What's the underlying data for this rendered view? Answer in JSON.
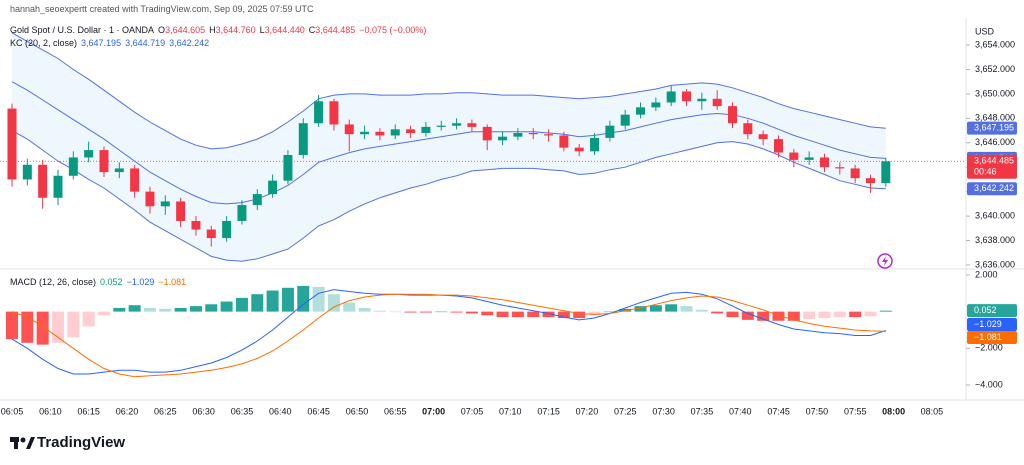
{
  "header": "hannah_seoexpertt created with TradingView.com, Sep 09, 2025 07:59 UTC",
  "footer": "TradingView",
  "chart_data": [
    {
      "type": "candlestick",
      "symbol": "Gold Spot / U.S. Dollar · 1 · OANDA",
      "ohlc_legend": [
        {
          "key": "O",
          "label": "3,644.605"
        },
        {
          "key": "H",
          "label": "3,644.760"
        },
        {
          "key": "L",
          "label": "3,644.440"
        },
        {
          "key": "C",
          "label": "3,644.485"
        }
      ],
      "change": "−0.075 (−0.00%)",
      "currency": "USD",
      "time_labels": [
        "06:05",
        "06:10",
        "06:15",
        "06:20",
        "06:25",
        "06:30",
        "06:35",
        "06:40",
        "06:45",
        "06:50",
        "06:55",
        "07:00",
        "07:05",
        "07:10",
        "07:15",
        "07:20",
        "07:25",
        "07:30",
        "07:35",
        "07:40",
        "07:45",
        "07:50",
        "07:55",
        "08:00",
        "08:05"
      ],
      "bold_time_labels": [
        11,
        23
      ],
      "up_color": "#089981",
      "down_color": "#f23645",
      "open": [
        3648.8,
        3643.0,
        3644.2,
        3641.5,
        3643.3,
        3644.8,
        3645.4,
        3643.6,
        3643.9,
        3642.0,
        3640.8,
        3641.2,
        3639.6,
        3638.9,
        3638.2,
        3639.6,
        3640.9,
        3641.8,
        3642.9,
        3645.0,
        3647.6,
        3649.4,
        3647.5,
        3646.7,
        3646.9,
        3646.6,
        3647.1,
        3646.8,
        3647.3,
        3647.4,
        3647.6,
        3647.3,
        3646.2,
        3646.5,
        3646.8,
        3646.7,
        3646.6,
        3645.6,
        3645.3,
        3646.4,
        3647.4,
        3648.3,
        3648.9,
        3649.3,
        3650.2,
        3649.4,
        3649.6,
        3649.0,
        3647.6,
        3646.7,
        3646.3,
        3645.2,
        3644.6,
        3644.8,
        3644.0,
        3643.9,
        3643.1,
        3642.7
      ],
      "high": [
        3649.2,
        3644.7,
        3644.6,
        3643.8,
        3645.3,
        3646.1,
        3645.7,
        3644.4,
        3644.2,
        3642.4,
        3641.7,
        3641.5,
        3640.0,
        3639.2,
        3640.0,
        3641.3,
        3642.2,
        3643.4,
        3645.4,
        3648.0,
        3649.9,
        3649.6,
        3647.9,
        3647.4,
        3647.2,
        3647.5,
        3647.4,
        3647.7,
        3647.8,
        3648.0,
        3647.9,
        3647.5,
        3646.9,
        3647.2,
        3647.2,
        3647.1,
        3646.9,
        3645.9,
        3646.8,
        3647.8,
        3648.7,
        3649.3,
        3649.7,
        3650.7,
        3650.4,
        3650.1,
        3650.3,
        3649.3,
        3647.9,
        3647.0,
        3646.6,
        3645.5,
        3645.3,
        3645.1,
        3644.4,
        3644.2,
        3643.4,
        3644.76
      ],
      "low": [
        3642.4,
        3642.5,
        3640.6,
        3640.9,
        3643.0,
        3644.4,
        3643.2,
        3643.1,
        3641.5,
        3640.2,
        3640.1,
        3639.1,
        3638.4,
        3637.5,
        3637.9,
        3639.3,
        3640.5,
        3641.5,
        3642.6,
        3644.7,
        3647.3,
        3647.0,
        3645.3,
        3646.3,
        3646.2,
        3646.3,
        3646.4,
        3646.5,
        3647.0,
        3647.1,
        3646.9,
        3645.4,
        3645.8,
        3646.2,
        3646.3,
        3646.1,
        3645.3,
        3644.9,
        3645.0,
        3646.1,
        3647.1,
        3648.0,
        3648.6,
        3649.0,
        3649.0,
        3648.7,
        3648.7,
        3647.2,
        3646.3,
        3645.8,
        3644.8,
        3644.0,
        3644.2,
        3643.6,
        3643.4,
        3642.7,
        3641.9,
        3642.4
      ],
      "close": [
        3643.0,
        3644.2,
        3641.5,
        3643.3,
        3644.8,
        3645.4,
        3643.6,
        3643.9,
        3642.0,
        3640.8,
        3641.2,
        3639.6,
        3638.9,
        3638.2,
        3639.6,
        3640.9,
        3641.8,
        3642.9,
        3645.0,
        3647.6,
        3649.4,
        3647.5,
        3646.7,
        3646.9,
        3646.6,
        3647.1,
        3646.8,
        3647.3,
        3647.4,
        3647.6,
        3647.3,
        3646.2,
        3646.5,
        3646.8,
        3646.7,
        3646.6,
        3645.6,
        3645.3,
        3646.4,
        3647.4,
        3648.3,
        3648.9,
        3649.3,
        3650.2,
        3649.4,
        3649.6,
        3649.0,
        3647.6,
        3646.7,
        3646.3,
        3645.2,
        3644.6,
        3644.8,
        3644.0,
        3643.9,
        3643.1,
        3642.7,
        3644.485
      ],
      "last_price_label": "3,644.485",
      "countdown": "00:46",
      "indicator": {
        "name": "KC (20, 2, close)",
        "color": "#5470e0",
        "fill": "rgba(33,150,243,0.08)",
        "series": [
          {
            "name": "upper",
            "last_label": "3,647.195",
            "values": [
              3655.0,
              3654.3,
              3653.6,
              3652.9,
              3652.0,
              3651.2,
              3650.3,
              3649.4,
              3648.5,
              3647.7,
              3647.0,
              3646.3,
              3645.8,
              3645.5,
              3645.6,
              3645.9,
              3646.3,
              3646.9,
              3647.7,
              3648.6,
              3649.6,
              3649.9,
              3650.0,
              3650.0,
              3649.9,
              3649.9,
              3649.9,
              3650.0,
              3650.0,
              3650.1,
              3650.1,
              3650.0,
              3649.9,
              3649.9,
              3649.9,
              3649.8,
              3649.7,
              3649.6,
              3649.7,
              3649.8,
              3650.0,
              3650.2,
              3650.4,
              3650.7,
              3650.8,
              3650.9,
              3650.8,
              3650.5,
              3650.1,
              3649.7,
              3649.2,
              3648.8,
              3648.5,
              3648.2,
              3647.9,
              3647.6,
              3647.3,
              3647.195
            ]
          },
          {
            "name": "middle",
            "last_label": "3,644.719",
            "values": [
              3651.0,
              3650.3,
              3649.5,
              3648.7,
              3647.9,
              3647.1,
              3646.3,
              3645.4,
              3644.5,
              3643.6,
              3642.9,
              3642.2,
              3641.6,
              3641.1,
              3641.0,
              3641.1,
              3641.4,
              3641.9,
              3642.5,
              3643.4,
              3644.4,
              3644.8,
              3645.2,
              3645.5,
              3645.7,
              3645.9,
              3646.1,
              3646.3,
              3646.5,
              3646.7,
              3646.9,
              3646.9,
              3646.9,
              3646.9,
              3646.9,
              3646.8,
              3646.7,
              3646.5,
              3646.6,
              3646.8,
              3647.0,
              3647.3,
              3647.6,
              3647.9,
              3648.1,
              3648.3,
              3648.4,
              3648.3,
              3648.0,
              3647.6,
              3647.1,
              3646.6,
              3646.2,
              3645.8,
              3645.4,
              3645.1,
              3644.8,
              3644.719
            ]
          },
          {
            "name": "lower",
            "last_label": "3,642.242",
            "values": [
              3647.0,
              3646.3,
              3645.4,
              3644.5,
              3643.8,
              3643.0,
              3642.3,
              3641.4,
              3640.5,
              3639.5,
              3638.8,
              3638.1,
              3637.4,
              3636.7,
              3636.4,
              3636.3,
              3636.5,
              3636.9,
              3637.3,
              3638.2,
              3639.2,
              3639.7,
              3640.4,
              3641.0,
              3641.5,
              3641.9,
              3642.3,
              3642.6,
              3643.0,
              3643.3,
              3643.7,
              3643.8,
              3643.9,
              3643.9,
              3643.9,
              3643.8,
              3643.7,
              3643.4,
              3643.5,
              3643.8,
              3644.0,
              3644.4,
              3644.8,
              3645.1,
              3645.4,
              3645.7,
              3646.0,
              3646.1,
              3645.9,
              3645.5,
              3645.0,
              3644.4,
              3643.9,
              3643.4,
              3642.9,
              3642.6,
              3642.3,
              3642.242
            ]
          }
        ]
      },
      "ylim": [
        3635.75,
        3656.05
      ],
      "yticks": [
        {
          "value": 3636,
          "label": "3,636.000"
        },
        {
          "value": 3638,
          "label": "3,638.000"
        },
        {
          "value": 3640,
          "label": "3,640.000"
        },
        {
          "value": 3642,
          "label": "3,642.000"
        },
        {
          "value": 3644,
          "label": "3,644.000"
        },
        {
          "value": 3646,
          "label": "3,646.000"
        },
        {
          "value": 3648,
          "label": "3,648.000"
        },
        {
          "value": 3650,
          "label": "3,650.000"
        },
        {
          "value": 3652,
          "label": "3,652.000"
        },
        {
          "value": 3654,
          "label": "3,654.000"
        }
      ]
    },
    {
      "type": "macd",
      "name": "MACD (12, 26, close)",
      "histogram": {
        "last_label": "0.052",
        "colors": [
          "#26a69a",
          "#b2dfdb",
          "#ff5252",
          "#ffcdd2"
        ],
        "values": [
          -1.5,
          -1.7,
          -1.8,
          -1.7,
          -1.4,
          -0.8,
          -0.2,
          0.2,
          0.35,
          0.2,
          0.15,
          0.2,
          0.3,
          0.4,
          0.55,
          0.75,
          0.95,
          1.15,
          1.3,
          1.4,
          1.35,
          0.95,
          0.5,
          0.2,
          0.05,
          0,
          -0.05,
          -0.05,
          0,
          -0.05,
          -0.1,
          -0.2,
          -0.3,
          -0.3,
          -0.3,
          -0.3,
          -0.35,
          -0.35,
          -0.2,
          0,
          0.15,
          0.3,
          0.35,
          0.4,
          0.3,
          0.1,
          -0.1,
          -0.3,
          -0.45,
          -0.5,
          -0.5,
          -0.5,
          -0.4,
          -0.35,
          -0.3,
          -0.3,
          -0.25,
          0.052
        ]
      },
      "series": [
        {
          "name": "macd",
          "color": "#2962ff",
          "last_label": "−1.029",
          "values": [
            -1.5,
            -2.0,
            -2.6,
            -3.1,
            -3.4,
            -3.4,
            -3.3,
            -3.2,
            -3.2,
            -3.3,
            -3.3,
            -3.2,
            -3.0,
            -2.8,
            -2.5,
            -2.1,
            -1.6,
            -1.0,
            -0.3,
            0.4,
            1.0,
            1.2,
            1.1,
            1.0,
            0.95,
            0.95,
            0.9,
            0.9,
            0.9,
            0.85,
            0.75,
            0.55,
            0.35,
            0.2,
            0.05,
            -0.1,
            -0.3,
            -0.45,
            -0.35,
            -0.1,
            0.2,
            0.5,
            0.75,
            1.0,
            1.05,
            0.95,
            0.7,
            0.3,
            -0.1,
            -0.4,
            -0.7,
            -0.95,
            -1.05,
            -1.15,
            -1.2,
            -1.3,
            -1.3,
            -1.029
          ]
        },
        {
          "name": "signal",
          "color": "#ff6d00",
          "last_label": "−1.081",
          "values": [
            0.0,
            -0.3,
            -0.8,
            -1.4,
            -2.0,
            -2.6,
            -3.1,
            -3.4,
            -3.55,
            -3.5,
            -3.45,
            -3.4,
            -3.3,
            -3.2,
            -3.05,
            -2.85,
            -2.55,
            -2.15,
            -1.6,
            -1.0,
            -0.35,
            0.25,
            0.6,
            0.8,
            0.9,
            0.95,
            0.95,
            0.95,
            0.9,
            0.9,
            0.85,
            0.75,
            0.65,
            0.5,
            0.35,
            0.2,
            0.05,
            -0.1,
            -0.15,
            -0.1,
            0.05,
            0.2,
            0.4,
            0.6,
            0.75,
            0.85,
            0.8,
            0.6,
            0.35,
            0.1,
            -0.2,
            -0.45,
            -0.65,
            -0.8,
            -0.9,
            -1.0,
            -1.05,
            -1.081
          ]
        }
      ],
      "ylim": [
        -4.82,
        2.27
      ],
      "yticks": [
        {
          "value": 2,
          "label": "2.000"
        },
        {
          "value": -2,
          "label": "−2.000"
        },
        {
          "value": -4,
          "label": "−4.000"
        }
      ]
    }
  ]
}
